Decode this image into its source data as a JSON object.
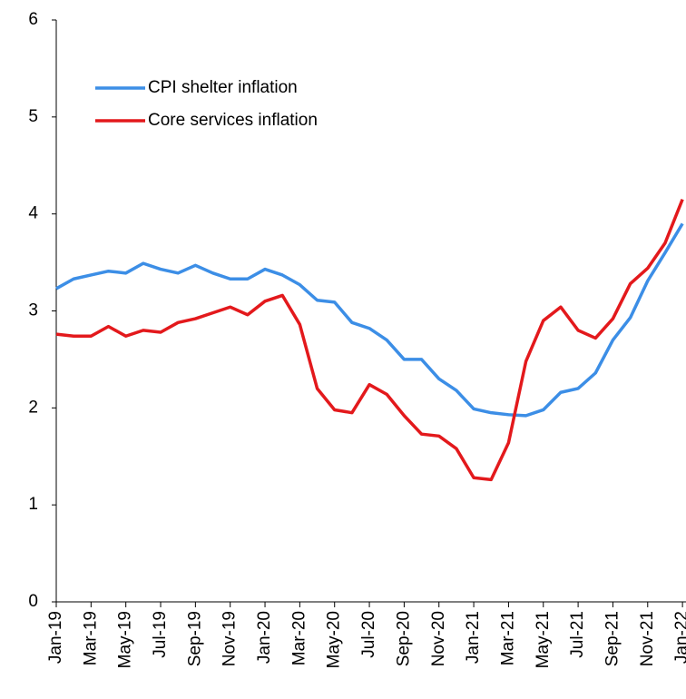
{
  "chart_data": {
    "type": "line",
    "categories": [
      "Jan-19",
      null,
      "Mar-19",
      null,
      "May-19",
      null,
      "Jul-19",
      null,
      "Sep-19",
      null,
      "Nov-19",
      null,
      "Jan-20",
      null,
      "Mar-20",
      null,
      "May-20",
      null,
      "Jul-20",
      null,
      "Sep-20",
      null,
      "Nov-20",
      null,
      "Jan-21",
      null,
      "Mar-21",
      null,
      "May-21",
      null,
      "Jul-21",
      null,
      "Sep-21",
      null,
      "Nov-21",
      null,
      "Jan-22"
    ],
    "series": [
      {
        "name": "CPI shelter inflation",
        "color": "#3c8ee6",
        "values": [
          3.23,
          3.33,
          3.37,
          3.41,
          3.39,
          3.49,
          3.43,
          3.39,
          3.47,
          3.39,
          3.33,
          3.33,
          3.43,
          3.37,
          3.27,
          3.11,
          3.09,
          2.88,
          2.82,
          2.7,
          2.5,
          2.5,
          2.3,
          2.18,
          1.99,
          1.95,
          1.93,
          1.92,
          1.98,
          2.16,
          2.2,
          2.36,
          2.7,
          2.93,
          3.31,
          3.6,
          3.9
        ]
      },
      {
        "name": "Core services inflation",
        "color": "#e3191c",
        "values": [
          2.76,
          2.74,
          2.74,
          2.84,
          2.74,
          2.8,
          2.78,
          2.88,
          2.92,
          2.98,
          3.04,
          2.96,
          3.1,
          3.16,
          2.86,
          2.2,
          1.98,
          1.95,
          2.24,
          2.14,
          1.92,
          1.73,
          1.71,
          1.58,
          1.28,
          1.26,
          1.64,
          2.48,
          2.9,
          3.04,
          2.8,
          2.72,
          2.92,
          3.28,
          3.44,
          3.7,
          4.15
        ]
      }
    ],
    "ylim": [
      0,
      6
    ],
    "yticks": [
      0,
      1,
      2,
      3,
      4,
      5,
      6
    ],
    "legend": "upper left"
  }
}
